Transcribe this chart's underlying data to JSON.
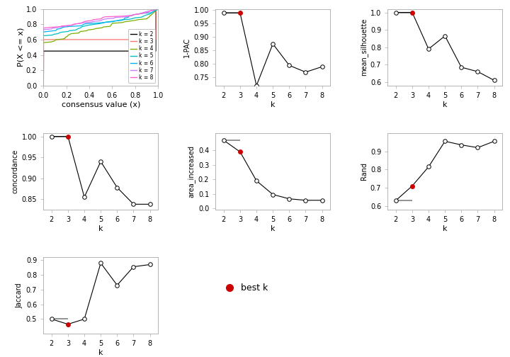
{
  "pac_data": {
    "k": [
      2,
      3,
      4,
      5,
      6,
      7,
      8
    ],
    "y": [
      0.99,
      0.99,
      0.72,
      0.875,
      0.795,
      0.77,
      0.79
    ],
    "best_k": 3,
    "ylim": [
      0.72,
      1.005
    ],
    "yticks": [
      0.75,
      0.8,
      0.85,
      0.9,
      0.95,
      1.0
    ],
    "ylabel": "1-PAC"
  },
  "silhouette_data": {
    "k": [
      2,
      3,
      4,
      5,
      6,
      7,
      8
    ],
    "y": [
      1.0,
      1.0,
      0.79,
      0.865,
      0.685,
      0.66,
      0.61
    ],
    "best_k": 3,
    "ylim": [
      0.58,
      1.02
    ],
    "yticks": [
      0.6,
      0.7,
      0.8,
      0.9,
      1.0
    ],
    "ylabel": "mean_silhouette"
  },
  "concordance_data": {
    "k": [
      2,
      3,
      4,
      5,
      6,
      7,
      8
    ],
    "y": [
      1.0,
      1.0,
      0.855,
      0.94,
      0.878,
      0.838,
      0.838
    ],
    "best_k": 3,
    "ylim": [
      0.825,
      1.008
    ],
    "yticks": [
      0.85,
      0.9,
      0.95,
      1.0
    ],
    "ylabel": "concordance"
  },
  "area_increased_data": {
    "k": [
      2,
      3,
      4,
      5,
      6,
      7,
      8
    ],
    "y": [
      0.47,
      0.39,
      0.19,
      0.095,
      0.065,
      0.055,
      0.055
    ],
    "best_k": 3,
    "ylim": [
      -0.01,
      0.52
    ],
    "yticks": [
      0.0,
      0.1,
      0.2,
      0.3,
      0.4
    ],
    "ylabel": "area_increased"
  },
  "rand_data": {
    "k": [
      2,
      3,
      4,
      5,
      6,
      7,
      8
    ],
    "y": [
      0.63,
      0.71,
      0.815,
      0.955,
      0.935,
      0.92,
      0.955
    ],
    "best_k": 3,
    "ylim": [
      0.58,
      1.0
    ],
    "yticks": [
      0.6,
      0.7,
      0.8,
      0.9
    ],
    "ylabel": "Rand"
  },
  "jaccard_data": {
    "k": [
      2,
      3,
      4,
      5,
      6,
      7,
      8
    ],
    "y": [
      0.5,
      0.465,
      0.5,
      0.88,
      0.73,
      0.855,
      0.87
    ],
    "best_k": 3,
    "ylim": [
      0.4,
      0.92
    ],
    "yticks": [
      0.5,
      0.6,
      0.7,
      0.8,
      0.9
    ],
    "ylabel": "Jaccard"
  },
  "ecdf_colors": [
    "#000000",
    "#F8766D",
    "#7CAE00",
    "#00BFC4",
    "#00B4F0",
    "#C77CFF",
    "#FF61CC"
  ],
  "ecdf_lw": 0.9,
  "bg_color": "#FFFFFF",
  "open_circle_color": "white",
  "line_color": "black",
  "best_k_color": "#CC0000",
  "axis_color": "#AAAAAA",
  "tick_labelsize": 7,
  "axis_labelsize": 8,
  "marker_size": 4
}
